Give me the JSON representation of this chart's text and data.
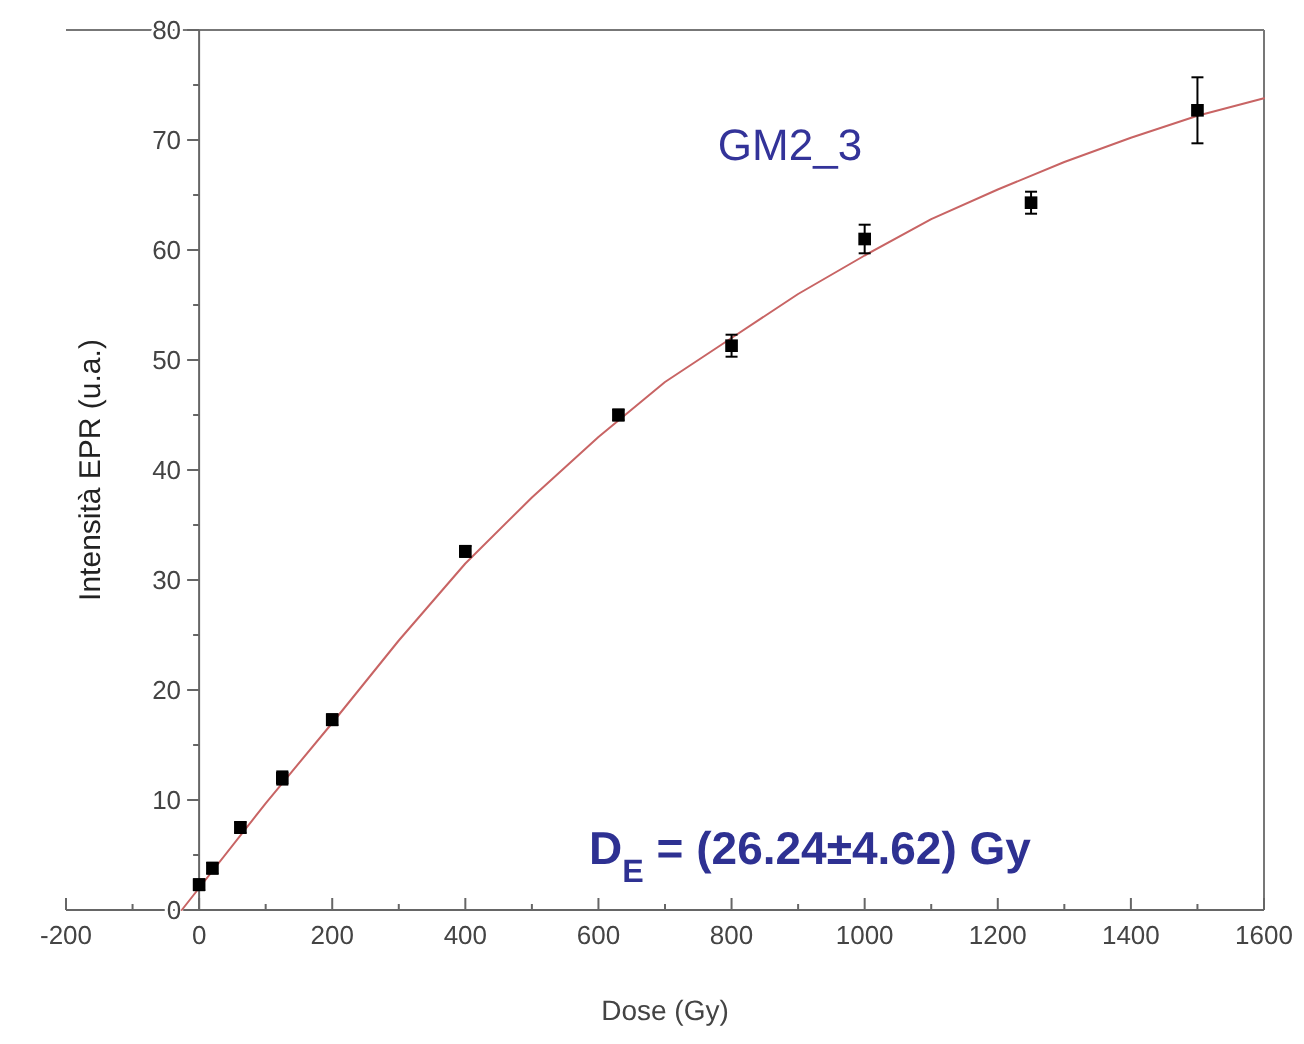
{
  "chart_data": {
    "type": "scatter",
    "xlabel": "Dose (Gy)",
    "ylabel": "Intensità EPR (u.a.)",
    "annotations": [
      "GM2_3",
      "D$_{E}$ = (26.24±4.62) Gy"
    ],
    "xlim": [
      -200,
      1600
    ],
    "ylim": [
      0,
      80
    ],
    "xticks": [
      -200,
      {
        "value": -100,
        "label": null
      },
      0,
      {
        "value": 100,
        "label": null
      },
      200,
      {
        "value": 300,
        "label": null
      },
      400,
      {
        "value": 500,
        "label": null
      },
      600,
      {
        "value": 700,
        "label": null
      },
      800,
      {
        "value": 900,
        "label": null
      },
      1000,
      {
        "value": 1100,
        "label": null
      },
      1200,
      {
        "value": 1300,
        "label": null
      },
      1400,
      {
        "value": 1500,
        "label": null
      },
      1600
    ],
    "yticks": [
      0,
      {
        "value": 5,
        "label": null
      },
      10,
      {
        "value": 15,
        "label": null
      },
      20,
      {
        "value": 25,
        "label": null
      },
      30,
      {
        "value": 35,
        "label": null
      },
      40,
      {
        "value": 45,
        "label": null
      },
      50,
      {
        "value": 55,
        "label": null
      },
      60,
      {
        "value": 65,
        "label": null
      },
      70,
      {
        "value": 75,
        "label": null
      },
      80
    ],
    "marker": "square",
    "series": [
      {
        "type": "line",
        "marker": "none",
        "color": "#c86464",
        "x": [
          -26,
          0,
          100,
          200,
          300,
          400,
          500,
          600,
          700,
          800,
          900,
          1000,
          1100,
          1200,
          1300,
          1400,
          1500,
          1600
        ],
        "values": [
          0,
          2,
          9.7,
          17,
          24.5,
          31.5,
          37.5,
          43,
          48,
          52,
          56,
          59.5,
          62.8,
          65.5,
          68,
          70.2,
          72.2,
          73.8
        ]
      },
      {
        "color": "#000000",
        "x": [
          0,
          20,
          62,
          125,
          200,
          400,
          630,
          800,
          1000,
          1250,
          1500
        ],
        "values": [
          2.3,
          3.8,
          7.5,
          12,
          17.3,
          32.6,
          45,
          51.3,
          61,
          64.3,
          72.7
        ],
        "errors": [
          0.5,
          0.5,
          0.5,
          0.6,
          0.5,
          0.5,
          0.5,
          1,
          1.3,
          1,
          3
        ]
      }
    ]
  }
}
